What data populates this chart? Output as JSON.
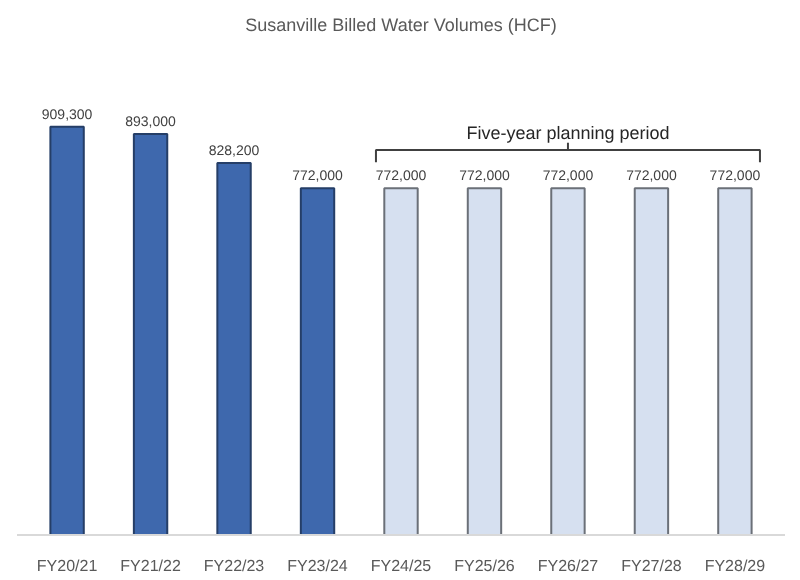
{
  "chart_data": {
    "type": "bar",
    "title": "Susanville Billed Water Volumes (HCF)",
    "categories": [
      "FY20/21",
      "FY21/22",
      "FY22/23",
      "FY23/24",
      "FY24/25",
      "FY25/26",
      "FY26/27",
      "FY27/28",
      "FY28/29"
    ],
    "values": [
      909300,
      893000,
      828200,
      772000,
      772000,
      772000,
      772000,
      772000,
      772000
    ],
    "colors": [
      "#3e68ad",
      "#3e68ad",
      "#3e68ad",
      "#3e68ad",
      "#d6e0f0",
      "#d6e0f0",
      "#d6e0f0",
      "#d6e0f0",
      "#d6e0f0"
    ],
    "value_labels": [
      "909,300",
      "893,000",
      "828,200",
      "772,000",
      "772,000",
      "772,000",
      "772,000",
      "772,000",
      "772,000"
    ],
    "annotations": [
      "Five-year planning period"
    ],
    "grid": false
  }
}
